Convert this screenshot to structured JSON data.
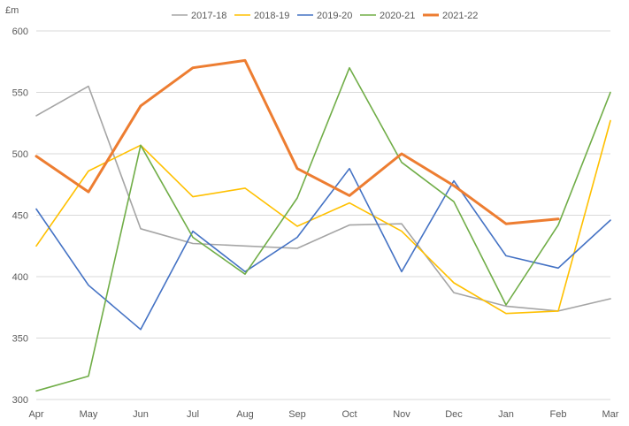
{
  "chart_data": {
    "type": "line",
    "ylabel": "£m",
    "ylim": [
      300,
      600
    ],
    "yticks": [
      300,
      350,
      400,
      450,
      500,
      550,
      600
    ],
    "categories": [
      "Apr",
      "May",
      "Jun",
      "Jul",
      "Aug",
      "Sep",
      "Oct",
      "Nov",
      "Dec",
      "Jan",
      "Feb",
      "Mar"
    ],
    "grid": true,
    "legend_position": "top",
    "series": [
      {
        "name": "2017-18",
        "color": "#a5a5a5",
        "width": 1.6,
        "values": [
          531,
          555,
          439,
          427,
          425,
          423,
          442,
          443,
          387,
          376,
          372,
          382
        ]
      },
      {
        "name": "2018-19",
        "color": "#ffc000",
        "width": 1.6,
        "values": [
          425,
          486,
          507,
          465,
          472,
          441,
          460,
          437,
          395,
          370,
          372,
          527
        ]
      },
      {
        "name": "2019-20",
        "color": "#4472c4",
        "width": 1.6,
        "values": [
          455,
          393,
          357,
          437,
          404,
          432,
          488,
          404,
          478,
          417,
          407,
          446
        ]
      },
      {
        "name": "2020-21",
        "color": "#70ad47",
        "width": 1.6,
        "values": [
          307,
          319,
          507,
          432,
          402,
          464,
          570,
          493,
          461,
          377,
          442,
          550
        ]
      },
      {
        "name": "2021-22",
        "color": "#ed7d31",
        "width": 3,
        "values": [
          498,
          469,
          539,
          570,
          576,
          488,
          466,
          500,
          474,
          443,
          447,
          null
        ]
      }
    ]
  }
}
